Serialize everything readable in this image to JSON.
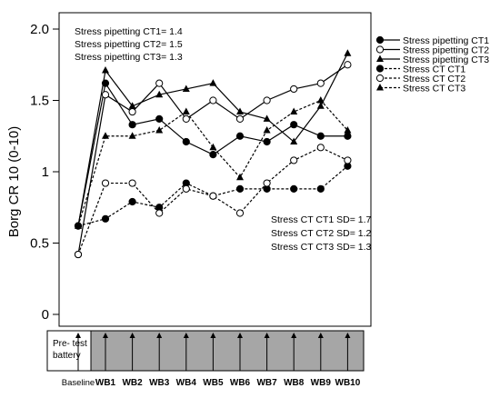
{
  "chart_data": {
    "type": "line",
    "ylabel": "Borg CR 10 (0-10)",
    "ylim": [
      0,
      2.0
    ],
    "yticks": [
      "0",
      "0.5",
      "1",
      "1.5",
      "2.0"
    ],
    "ytick_values": [
      0,
      0.5,
      1,
      1.5,
      2.0
    ],
    "categories": [
      "Baseline",
      "WB1",
      "WB2",
      "WB3",
      "WB4",
      "WB5",
      "WB6",
      "WB7",
      "WB8",
      "WB9",
      "WB10"
    ],
    "baseline_label": "Baseline",
    "pretest_label": "Pre- test battery",
    "legend_placement": "right",
    "series": [
      {
        "name": "Stress pipetting CT1",
        "line": "solid",
        "marker": "circle-filled",
        "values": [
          0.62,
          1.62,
          1.33,
          1.37,
          1.21,
          1.12,
          1.25,
          1.21,
          1.33,
          1.25,
          1.25
        ]
      },
      {
        "name": "Stress pipetting CT2",
        "line": "solid",
        "marker": "circle-open",
        "values": [
          0.42,
          1.54,
          1.42,
          1.62,
          1.37,
          1.5,
          1.37,
          1.5,
          1.58,
          1.62,
          1.75
        ]
      },
      {
        "name": "Stress pipetting CT3",
        "line": "solid",
        "marker": "triangle",
        "values": [
          0.62,
          1.71,
          1.46,
          1.54,
          1.58,
          1.62,
          1.42,
          1.37,
          1.21,
          1.46,
          1.83
        ]
      },
      {
        "name": "Stress CT CT1",
        "line": "dashed",
        "marker": "circle-filled",
        "values": [
          0.62,
          0.67,
          0.79,
          0.75,
          0.92,
          0.83,
          0.88,
          0.88,
          0.88,
          0.88,
          1.04
        ]
      },
      {
        "name": "Stress CT CT2",
        "line": "dashed",
        "marker": "circle-open",
        "values": [
          0.42,
          0.92,
          0.92,
          0.71,
          0.88,
          0.83,
          0.71,
          0.92,
          1.08,
          1.17,
          1.08
        ]
      },
      {
        "name": "Stress CT CT3",
        "line": "dashed",
        "marker": "triangle",
        "values": [
          0.62,
          1.25,
          1.25,
          1.29,
          1.42,
          1.17,
          0.96,
          1.29,
          1.42,
          1.5,
          1.29
        ]
      }
    ],
    "annotations_top": [
      "Stress pipetting CT1= 1.4",
      "Stress pipetting CT2= 1.5",
      "Stress pipetting CT3= 1.3"
    ],
    "annotations_bottom": [
      "Stress CT CT1 SD= 1.7",
      "Stress CT CT2 SD= 1.2",
      "Stress CT CT3 SD= 1.3"
    ],
    "colors": {
      "line": "#000000",
      "timeline_fill": "#a6a6a6"
    }
  }
}
